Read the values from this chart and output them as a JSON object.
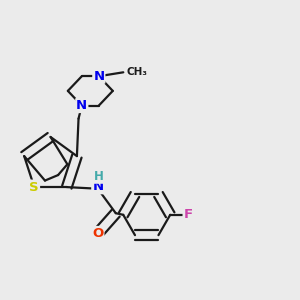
{
  "bg_color": "#ebebeb",
  "bond_color": "#1a1a1a",
  "bond_width": 1.6,
  "atom_colors": {
    "S": "#cccc00",
    "N": "#0000ee",
    "O": "#ee3300",
    "F": "#cc44aa",
    "H": "#44aaaa",
    "C": "#1a1a1a"
  },
  "font_size_atom": 9.5,
  "font_size_small": 8.5
}
